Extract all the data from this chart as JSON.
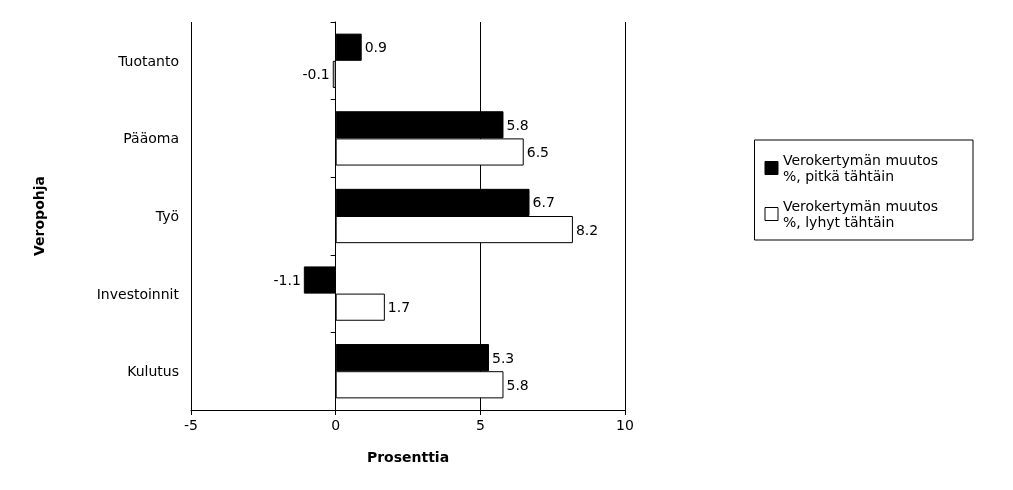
{
  "chart_data": {
    "type": "bar",
    "orientation": "horizontal",
    "xlabel": "Prosenttia",
    "ylabel": "Veropohja",
    "categories": [
      "Tuotanto",
      "Pääoma",
      "Työ",
      "Investoinnit",
      "Kulutus"
    ],
    "series": [
      {
        "name": "Verokertymän muutos %, pitkä tähtäin",
        "color": "#000000",
        "values": [
          0.9,
          5.8,
          6.7,
          -1.1,
          5.3
        ]
      },
      {
        "name": "Verokertymän muutos %, lyhyt tähtäin",
        "color": "#ffffff",
        "values": [
          -0.1,
          6.5,
          8.2,
          1.7,
          5.8
        ]
      }
    ],
    "xlim": [
      -5,
      10
    ],
    "xticks": [
      -5,
      0,
      5,
      10
    ],
    "grid": "x",
    "legend": "right",
    "data_labels": true
  }
}
